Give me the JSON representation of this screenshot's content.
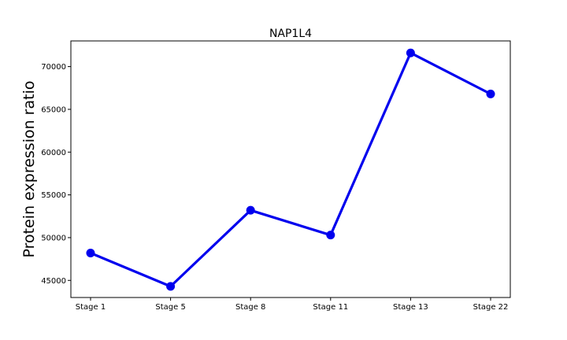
{
  "chart_data": {
    "type": "line",
    "title": "NAP1L4",
    "xlabel": "",
    "ylabel": "Protein expression ratio",
    "categories": [
      "Stage 1",
      "Stage 5",
      "Stage 8",
      "Stage 11",
      "Stage 13",
      "Stage 22"
    ],
    "series": [
      {
        "values": [
          48200,
          44300,
          53200,
          50300,
          71600,
          66800
        ],
        "color": "#0000ee"
      }
    ],
    "ylim": [
      43000,
      73000
    ],
    "yticks": [
      "45000",
      "50000",
      "55000",
      "60000",
      "65000",
      "70000"
    ],
    "grid": false,
    "legend": "none"
  }
}
